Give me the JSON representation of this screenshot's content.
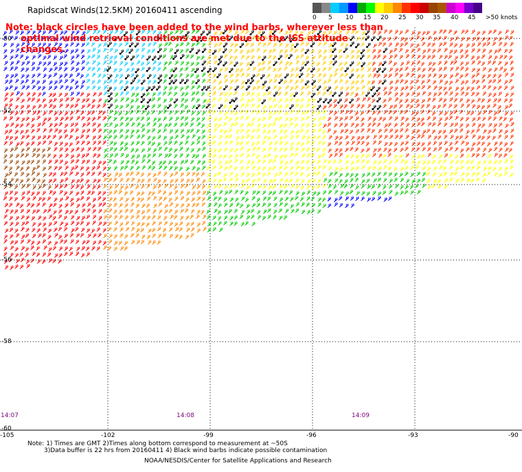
{
  "title": "Rapidscat Winds(12.5KM) 20160411 ascending",
  "note_line1": "Note: black circles have been added to the wind barbs, wherever less than",
  "note_line2": "optimal wind retrieval conditions are met due to the ISS attitude changes.",
  "scale": {
    "labels": [
      "0",
      "5",
      "10",
      "15",
      "20",
      "25",
      "30",
      "35",
      "40",
      "45",
      ">50 knots"
    ],
    "colors": [
      "#555555",
      "#888888",
      "#00ccff",
      "#0099ff",
      "#0000ff",
      "#00aa00",
      "#00ff00",
      "#ffff00",
      "#ffcc00",
      "#ff8800",
      "#ff3300",
      "#ff0000",
      "#cc0000",
      "#994400",
      "#aa5500",
      "#cc00cc",
      "#ff00ff",
      "#7700cc",
      "#440088"
    ]
  },
  "lat_labels": [
    "-50",
    "-52",
    "-54",
    "-56",
    "-58",
    "-60"
  ],
  "lon_labels": [
    "-105",
    "-102",
    "-99",
    "-96",
    "-93",
    "-90"
  ],
  "time_labels": [
    "14:07",
    "14:08",
    "14:09"
  ],
  "footer": {
    "line1": "Note: 1) Times are GMT 2)Times along bottom correspond to measurement at ~50S",
    "line2": "3)Data buffer is 22 hrs from 20160411 4) Black wind barbs indicate possible contamination",
    "line3": "NOAA/NESDIS/Center for Satellite Applications and Research"
  }
}
